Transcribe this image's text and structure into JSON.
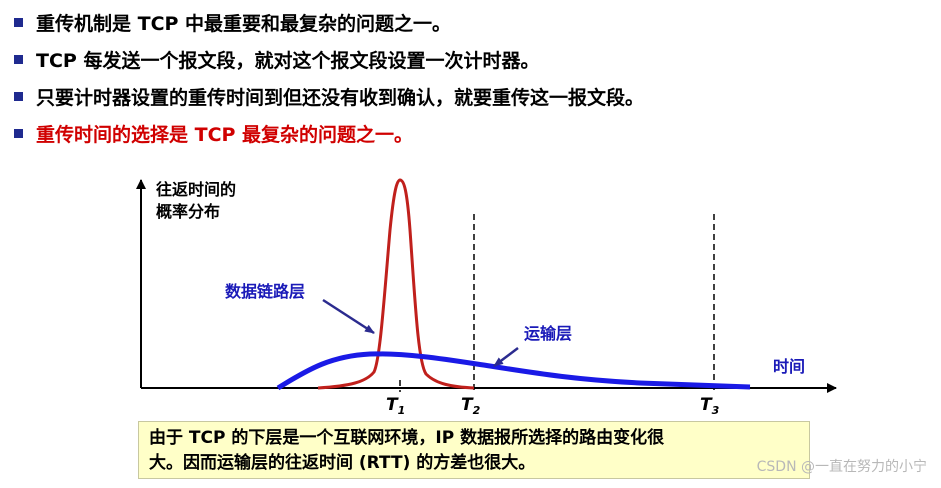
{
  "bullets": [
    {
      "text": "重传机制是 TCP 中最重要和最复杂的问题之一。",
      "color": "#000000"
    },
    {
      "text": "TCP 每发送一个报文段，就对这个报文段设置一次计时器。",
      "color": "#000000"
    },
    {
      "text": "只要计时器设置的重传时间到但还没有收到确认，就要重传这一报文段。",
      "color": "#000000"
    },
    {
      "text": "重传时间的选择是 TCP 最复杂的问题之一。",
      "color": "#d00000"
    }
  ],
  "diagram": {
    "y_axis_label_line1": "往返时间的",
    "y_axis_label_line2": "概率分布",
    "x_axis_label": "时间",
    "label_data_link": "数据链路层",
    "label_transport": "运输层",
    "markers": [
      {
        "letter": "T",
        "sub": "1"
      },
      {
        "letter": "T",
        "sub": "2"
      },
      {
        "letter": "T",
        "sub": "3"
      }
    ],
    "colors": {
      "data_link_curve": "#c0201c",
      "transport_curve": "#1a1ae6",
      "arrow": "#2b2b8f"
    }
  },
  "note": {
    "line1": "由于 TCP 的下层是一个互联网环境，IP 数据报所选择的路由变化很",
    "line2": "大。因而运输层的往返时间 (RTT) 的方差也很大。",
    "background": "#ffffc8"
  },
  "watermark": "CSDN @一直在努力的小宁"
}
